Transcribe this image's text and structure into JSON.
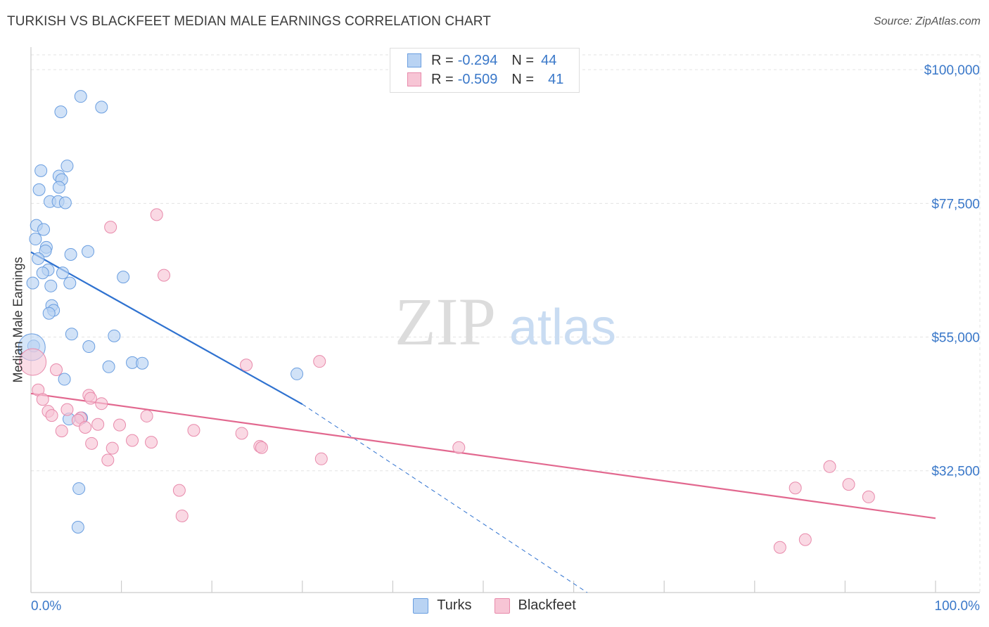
{
  "header": {
    "title": "TURKISH VS BLACKFEET MEDIAN MALE EARNINGS CORRELATION CHART",
    "source": "Source: ZipAtlas.com"
  },
  "watermark": {
    "zip": "ZIP",
    "atlas": "atlas"
  },
  "colors": {
    "turks_fill": "#b9d3f3",
    "turks_stroke": "#6a9ee0",
    "turks_line": "#2f72d0",
    "blackfeet_fill": "#f7c5d5",
    "blackfeet_stroke": "#e88aab",
    "blackfeet_line": "#e2688f",
    "tick_label": "#3a78c9",
    "grid": "#e3e3e3"
  },
  "legend": {
    "rows": [
      {
        "r_label": "R =",
        "r_value": "-0.294",
        "n_label": "N =",
        "n_value": "44"
      },
      {
        "r_label": "R =",
        "r_value": "-0.509",
        "n_label": "N =",
        "n_value": "41"
      }
    ]
  },
  "bottom_legend": {
    "turks": "Turks",
    "blackfeet": "Blackfeet"
  },
  "chart_data": {
    "type": "scatter",
    "title": "TURKISH VS BLACKFEET MEDIAN MALE EARNINGS CORRELATION CHART",
    "xlabel": "",
    "ylabel": "Median Male Earnings",
    "x_tick_labels": [
      "0.0%",
      "100.0%"
    ],
    "y_tick_labels": [
      "$100,000",
      "$77,500",
      "$55,000",
      "$32,500"
    ],
    "y_ticks": [
      100000,
      77500,
      55000,
      32500
    ],
    "xlim": [
      0,
      100
    ],
    "ylim": [
      12000,
      102500
    ],
    "grid": true,
    "legend_position": "top-center",
    "series": [
      {
        "name": "Turks",
        "r": -0.294,
        "n": 44,
        "trend": {
          "x0": 0,
          "y0": 69300,
          "x1": 30,
          "y1": 43700,
          "dashed_to_x": 61.5,
          "dashed_to_y": 12000
        },
        "points": [
          [
            5.5,
            95500
          ],
          [
            3.3,
            92900
          ],
          [
            7.8,
            93700
          ],
          [
            1.1,
            83000
          ],
          [
            3.1,
            82100
          ],
          [
            3.4,
            81500
          ],
          [
            4.0,
            83800
          ],
          [
            0.9,
            79800
          ],
          [
            3.1,
            80200
          ],
          [
            2.1,
            77800
          ],
          [
            3.0,
            77800
          ],
          [
            3.8,
            77600
          ],
          [
            0.6,
            73800
          ],
          [
            1.4,
            73100
          ],
          [
            0.5,
            71500
          ],
          [
            1.7,
            70100
          ],
          [
            1.6,
            69500
          ],
          [
            4.4,
            68900
          ],
          [
            6.3,
            69400
          ],
          [
            0.8,
            68200
          ],
          [
            1.9,
            66300
          ],
          [
            1.3,
            65800
          ],
          [
            3.5,
            65800
          ],
          [
            0.2,
            64100
          ],
          [
            2.2,
            63600
          ],
          [
            4.3,
            64100
          ],
          [
            10.2,
            65100
          ],
          [
            2.3,
            60300
          ],
          [
            2.5,
            59500
          ],
          [
            2.0,
            59000
          ],
          [
            0.3,
            53500
          ],
          [
            4.5,
            55500
          ],
          [
            9.2,
            55200
          ],
          [
            6.4,
            53400
          ],
          [
            11.2,
            50700
          ],
          [
            12.3,
            50600
          ],
          [
            8.6,
            50000
          ],
          [
            29.4,
            48800
          ],
          [
            3.7,
            47900
          ],
          [
            4.2,
            41200
          ],
          [
            5.6,
            41400
          ],
          [
            5.3,
            29500
          ],
          [
            5.2,
            23000
          ],
          [
            0.1,
            53300
          ]
        ]
      },
      {
        "name": "Blackfeet",
        "r": -0.509,
        "n": 41,
        "trend": {
          "x0": 0,
          "y0": 45500,
          "x1": 100,
          "y1": 24500
        },
        "points": [
          [
            0.2,
            50800
          ],
          [
            13.9,
            75600
          ],
          [
            8.8,
            73500
          ],
          [
            14.7,
            65400
          ],
          [
            23.8,
            50300
          ],
          [
            31.9,
            50900
          ],
          [
            2.8,
            49500
          ],
          [
            0.8,
            46100
          ],
          [
            6.4,
            45200
          ],
          [
            1.3,
            44500
          ],
          [
            6.6,
            44700
          ],
          [
            7.8,
            43800
          ],
          [
            1.9,
            42500
          ],
          [
            2.3,
            41800
          ],
          [
            4.0,
            42800
          ],
          [
            5.5,
            41400
          ],
          [
            12.8,
            41700
          ],
          [
            5.2,
            41000
          ],
          [
            7.4,
            40300
          ],
          [
            9.8,
            40200
          ],
          [
            6.0,
            39800
          ],
          [
            3.4,
            39200
          ],
          [
            18.0,
            39300
          ],
          [
            23.3,
            38800
          ],
          [
            11.2,
            37600
          ],
          [
            13.3,
            37300
          ],
          [
            6.7,
            37100
          ],
          [
            9.0,
            36300
          ],
          [
            25.3,
            36600
          ],
          [
            25.5,
            36400
          ],
          [
            47.3,
            36400
          ],
          [
            8.5,
            34300
          ],
          [
            32.1,
            34500
          ],
          [
            88.3,
            33200
          ],
          [
            16.4,
            29200
          ],
          [
            84.5,
            29600
          ],
          [
            90.4,
            30200
          ],
          [
            92.6,
            28100
          ],
          [
            16.7,
            24900
          ],
          [
            85.6,
            20900
          ],
          [
            82.8,
            19600
          ]
        ]
      }
    ]
  }
}
